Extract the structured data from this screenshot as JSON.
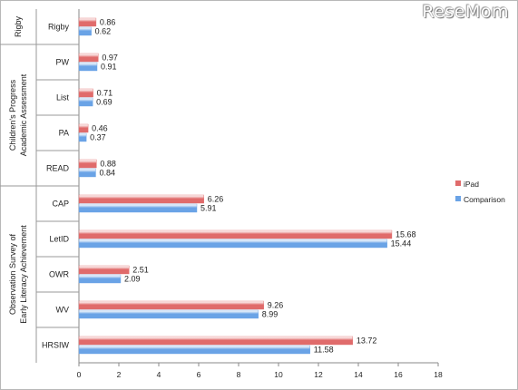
{
  "watermark": "ReseMom",
  "chart_data": {
    "type": "bar",
    "orientation": "horizontal",
    "xlim": [
      0,
      18
    ],
    "xticks": [
      0,
      2,
      4,
      6,
      8,
      10,
      12,
      14,
      16,
      18
    ],
    "categories": [
      "Rigby",
      "PW",
      "List",
      "PA",
      "READ",
      "CAP",
      "LetID",
      "OWR",
      "WV",
      "HRSIW"
    ],
    "groups": [
      {
        "label": "Rigby",
        "categories": [
          "Rigby"
        ]
      },
      {
        "label": "Children's Progress Academic Assessment",
        "categories": [
          "PW",
          "List",
          "PA",
          "READ"
        ]
      },
      {
        "label": "Observation Survey of Early Literacy Achievement",
        "categories": [
          "CAP",
          "LetID",
          "OWR",
          "WV",
          "HRSIW"
        ]
      }
    ],
    "series": [
      {
        "name": "iPad",
        "color": "#e06b6b",
        "values": [
          0.86,
          0.97,
          0.71,
          0.46,
          0.88,
          6.26,
          15.68,
          2.51,
          9.26,
          13.72
        ]
      },
      {
        "name": "Comparison",
        "color": "#6aa3e6",
        "values": [
          0.62,
          0.91,
          0.69,
          0.37,
          0.84,
          5.91,
          15.44,
          2.09,
          8.99,
          11.58
        ]
      }
    ],
    "legend_position": "right"
  }
}
